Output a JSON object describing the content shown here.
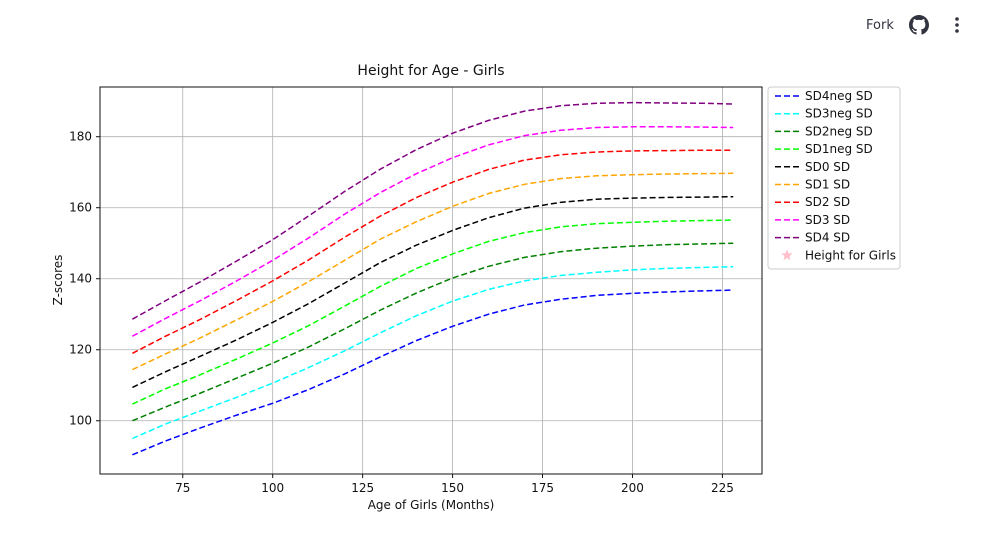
{
  "header": {
    "fork_label": "Fork",
    "github_icon": "github-icon",
    "menu_icon": "more-vertical-icon"
  },
  "chart_data": {
    "type": "line",
    "title": "Height for Age - Girls",
    "xlabel": "Age of Girls (Months)",
    "ylabel": "Z-scores",
    "xlim": [
      52,
      236
    ],
    "ylim": [
      85,
      194
    ],
    "xticks": [
      75,
      100,
      125,
      150,
      175,
      200,
      225
    ],
    "yticks": [
      100,
      120,
      140,
      160,
      180
    ],
    "grid": true,
    "legend_position": "outside-right-top",
    "x": [
      61,
      70,
      80,
      90,
      100,
      110,
      120,
      130,
      140,
      150,
      160,
      170,
      180,
      190,
      200,
      210,
      220,
      228
    ],
    "series": [
      {
        "name": "SD4neg SD",
        "color": "#0000ff",
        "values": [
          90.4,
          94.2,
          98.0,
          101.6,
          104.9,
          108.8,
          113.2,
          118.0,
          122.6,
          126.6,
          130.0,
          132.6,
          134.2,
          135.3,
          135.9,
          136.3,
          136.6,
          136.8
        ]
      },
      {
        "name": "SD3neg SD",
        "color": "#00ffff",
        "values": [
          95.0,
          99.0,
          102.8,
          106.6,
          110.6,
          115.0,
          119.7,
          124.8,
          129.6,
          133.7,
          137.0,
          139.4,
          140.9,
          141.8,
          142.5,
          142.9,
          143.2,
          143.4
        ]
      },
      {
        "name": "SD2neg SD",
        "color": "#008000",
        "values": [
          100.0,
          103.8,
          107.8,
          112.0,
          116.2,
          120.8,
          125.9,
          131.2,
          136.0,
          140.2,
          143.5,
          146.0,
          147.6,
          148.6,
          149.2,
          149.6,
          149.8,
          150.0
        ]
      },
      {
        "name": "SD1neg SD",
        "color": "#00ff00",
        "values": [
          104.7,
          108.9,
          113.0,
          117.4,
          121.9,
          126.8,
          132.3,
          137.9,
          142.9,
          147.0,
          150.5,
          153.0,
          154.6,
          155.5,
          155.9,
          156.2,
          156.4,
          156.5
        ]
      },
      {
        "name": "SD0 SD",
        "color": "#000000",
        "values": [
          109.4,
          113.7,
          118.2,
          122.8,
          127.7,
          133.0,
          138.8,
          144.6,
          149.5,
          153.6,
          157.2,
          159.9,
          161.5,
          162.4,
          162.7,
          162.9,
          163.0,
          163.1
        ]
      },
      {
        "name": "SD1 SD",
        "color": "#ffa500",
        "values": [
          114.4,
          118.7,
          123.4,
          128.4,
          133.6,
          139.2,
          145.2,
          151.2,
          156.1,
          160.4,
          164.0,
          166.6,
          168.2,
          169.0,
          169.3,
          169.5,
          169.6,
          169.7
        ]
      },
      {
        "name": "SD2 SD",
        "color": "#ff0000",
        "values": [
          119.0,
          123.7,
          128.6,
          133.9,
          139.4,
          145.3,
          151.7,
          157.7,
          162.9,
          167.2,
          170.8,
          173.4,
          174.9,
          175.7,
          176.0,
          176.1,
          176.2,
          176.2
        ]
      },
      {
        "name": "SD3 SD",
        "color": "#ff00ff",
        "values": [
          123.8,
          128.7,
          133.9,
          139.4,
          145.2,
          151.5,
          158.2,
          164.3,
          169.6,
          174.1,
          177.7,
          180.3,
          181.8,
          182.6,
          182.8,
          182.8,
          182.7,
          182.6
        ]
      },
      {
        "name": "SD4 SD",
        "color": "#800080",
        "values": [
          128.6,
          133.7,
          139.2,
          145.0,
          151.0,
          157.7,
          164.6,
          170.9,
          176.4,
          181.0,
          184.6,
          187.2,
          188.7,
          189.4,
          189.6,
          189.5,
          189.4,
          189.2
        ]
      }
    ],
    "extra_legend": {
      "name": "Height for Girls",
      "color": "#ffc0cb",
      "marker": "star"
    }
  }
}
